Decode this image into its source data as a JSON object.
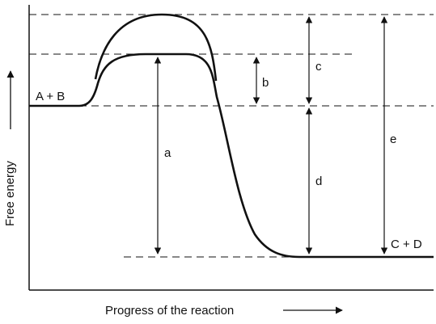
{
  "diagram": {
    "y_axis_label": "Free energy",
    "x_axis_label": "Progress of the reaction",
    "reactants_label": "A + B",
    "products_label": "C + D",
    "interval_labels": {
      "a": "a",
      "b": "b",
      "c": "c",
      "d": "d",
      "e": "e"
    }
  }
}
